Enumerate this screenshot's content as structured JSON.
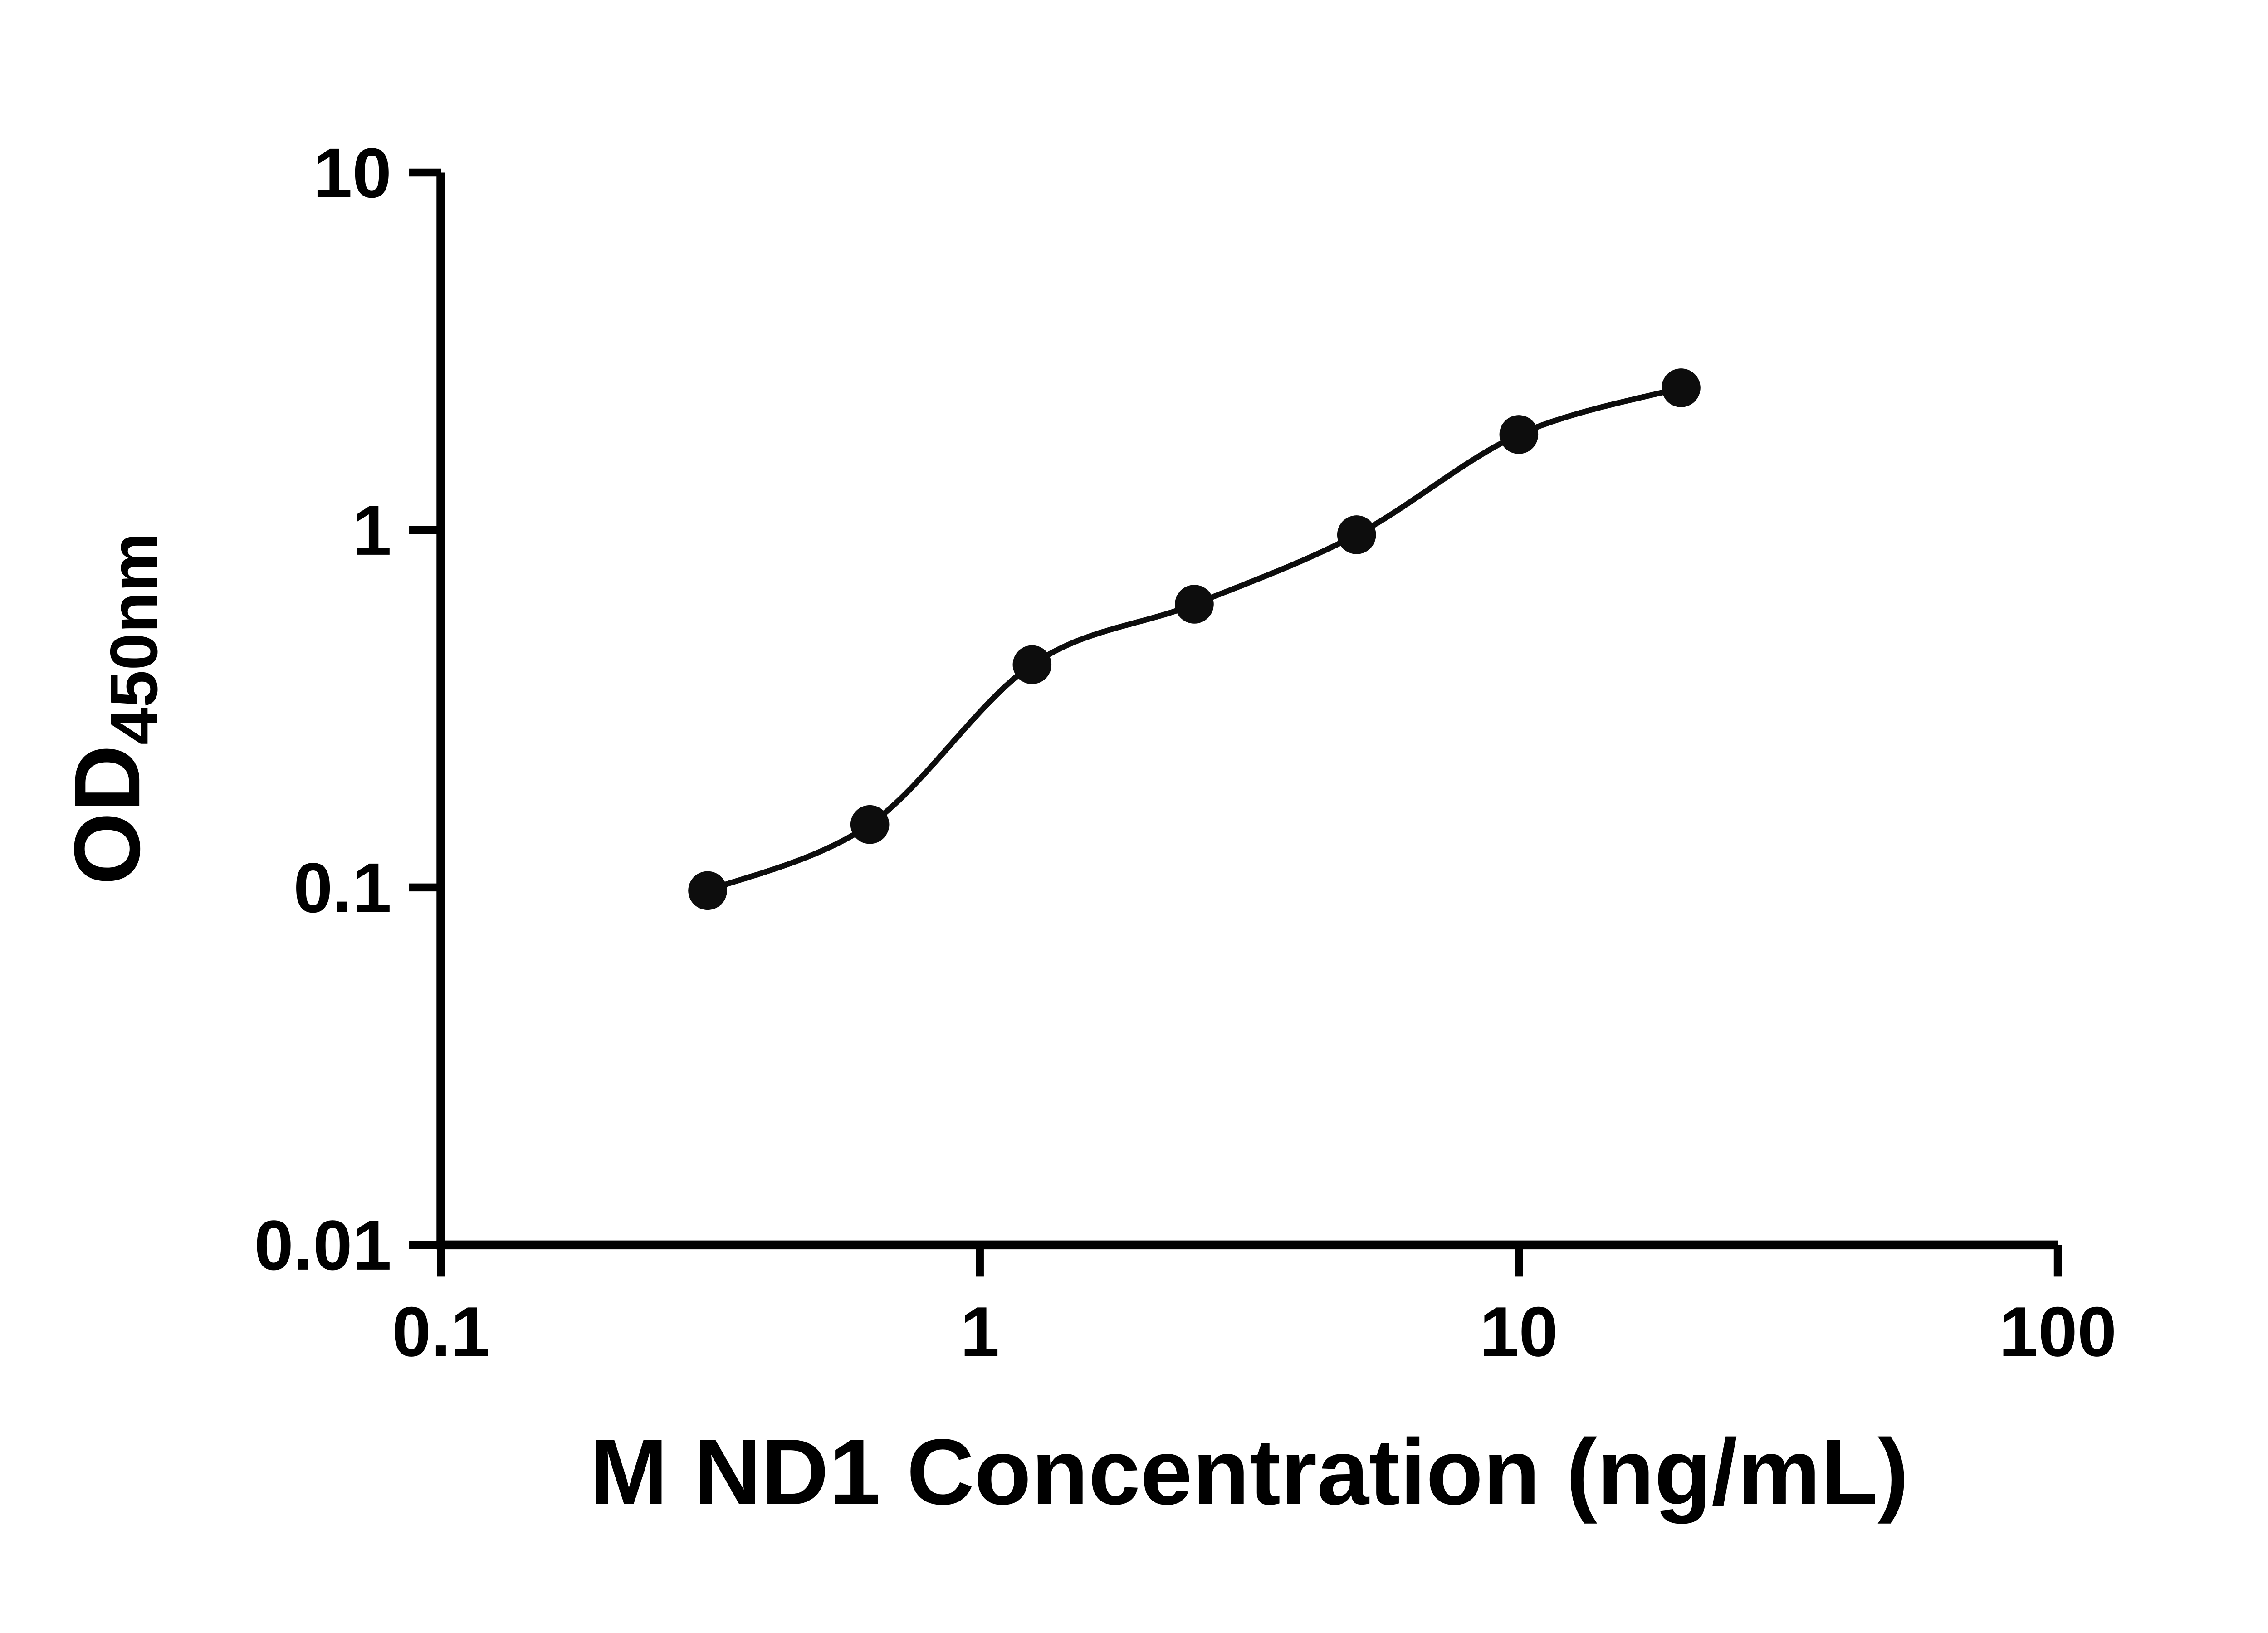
{
  "chart_data": {
    "type": "scatter",
    "curve": "smooth-fit-line",
    "title": "",
    "xlabel": "M ND1 Concentration (ng/mL)",
    "ylabel_main": "OD",
    "ylabel_sub": "450nm",
    "x_scale": "log10",
    "y_scale": "log10",
    "xlim": [
      0.1,
      100
    ],
    "ylim": [
      0.01,
      10
    ],
    "grid": false,
    "legend": null,
    "x_ticks": [
      {
        "value": 0.1,
        "label": "0.1"
      },
      {
        "value": 1,
        "label": "1"
      },
      {
        "value": 10,
        "label": "10"
      },
      {
        "value": 100,
        "label": "100"
      }
    ],
    "y_ticks": [
      {
        "value": 10,
        "label": "10"
      },
      {
        "value": 1,
        "label": "1"
      },
      {
        "value": 0.1,
        "label": "0.1"
      },
      {
        "value": 0.01,
        "label": "0.01"
      }
    ],
    "points": [
      {
        "x": 0.3125,
        "y": 0.098
      },
      {
        "x": 0.625,
        "y": 0.15
      },
      {
        "x": 1.25,
        "y": 0.42
      },
      {
        "x": 2.5,
        "y": 0.62
      },
      {
        "x": 5,
        "y": 0.97
      },
      {
        "x": 10,
        "y": 1.85
      },
      {
        "x": 20,
        "y": 2.5
      }
    ]
  },
  "style": {
    "background": "#ffffff",
    "axis_color": "#000000",
    "text_color": "#000000",
    "marker_color": "#0d0d0d",
    "line_color": "#0d0d0d"
  }
}
